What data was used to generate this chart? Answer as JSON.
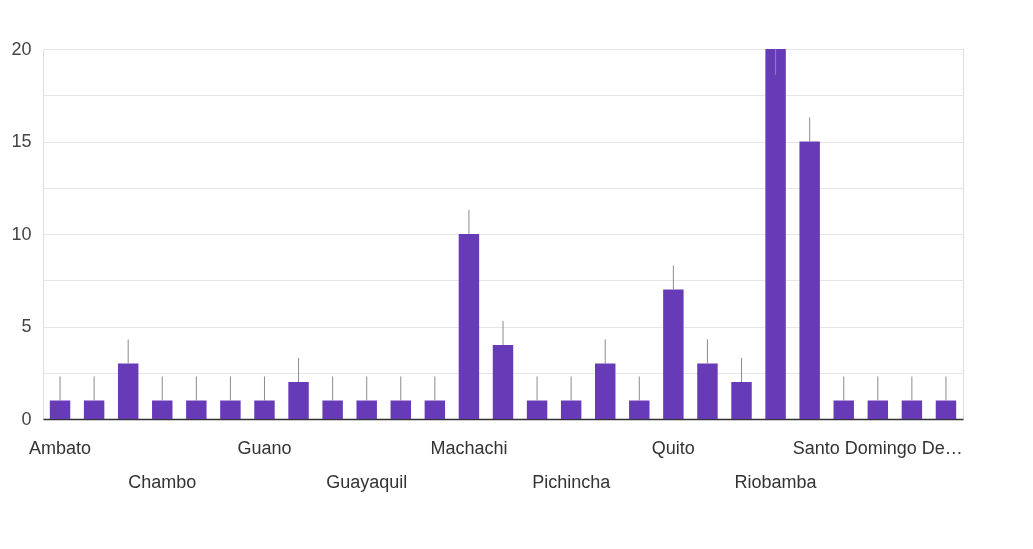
{
  "chart_data": {
    "type": "bar",
    "categories": [
      "Ambato",
      null,
      null,
      "Chambo",
      null,
      null,
      "Guano",
      null,
      null,
      "Guayaquil",
      null,
      null,
      "Machachi",
      null,
      null,
      "Pichincha",
      null,
      null,
      "Quito",
      null,
      null,
      "Riobamba",
      null,
      null,
      "Santo Domingo De…",
      null,
      null
    ],
    "values": [
      1,
      1,
      3,
      1,
      1,
      1,
      1,
      2,
      1,
      1,
      1,
      1,
      10,
      4,
      1,
      1,
      3,
      1,
      7,
      3,
      2,
      20,
      15,
      1,
      1,
      1,
      1
    ],
    "errors": [
      [
        1,
        2.3
      ],
      [
        1,
        2.3
      ],
      [
        3,
        4.3
      ],
      [
        1,
        2.3
      ],
      [
        1,
        2.3
      ],
      [
        1,
        2.3
      ],
      [
        1,
        2.3
      ],
      [
        2,
        3.3
      ],
      [
        1,
        2.3
      ],
      [
        1,
        2.3
      ],
      [
        1,
        2.3
      ],
      [
        1,
        2.3
      ],
      [
        10,
        11.3
      ],
      [
        4,
        5.3
      ],
      [
        1,
        2.3
      ],
      [
        1,
        2.3
      ],
      [
        3,
        4.3
      ],
      [
        1,
        2.3
      ],
      [
        7,
        8.3
      ],
      [
        3,
        4.3
      ],
      [
        2,
        3.3
      ],
      [
        18.6,
        20
      ],
      [
        15,
        16.3
      ],
      [
        1,
        2.3
      ],
      [
        1,
        2.3
      ],
      [
        1,
        2.3
      ],
      [
        1,
        2.3
      ]
    ],
    "color": "#673ab7",
    "ylim": [
      0,
      20
    ],
    "yticks": [
      0,
      {
        "value": 2.5,
        "label": null
      },
      5,
      {
        "value": 7.5,
        "label": null
      },
      10,
      {
        "value": 12.5,
        "label": null
      },
      15,
      {
        "value": 17.5,
        "label": null
      },
      20
    ],
    "grid": "y"
  }
}
